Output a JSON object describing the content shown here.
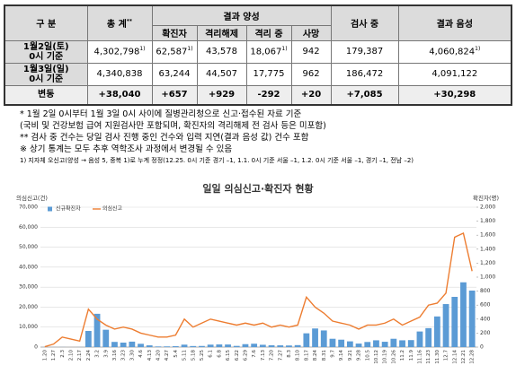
{
  "table": {
    "header_top": [
      "구 분",
      "총 계",
      "결과 양성",
      "검사 중",
      "결과 음성"
    ],
    "total_mark": "**",
    "header_sub": [
      "확진자",
      "격리해제",
      "격리 중",
      "사망"
    ],
    "rows": [
      {
        "label": [
          "1월2일(토)",
          "0시 기준"
        ],
        "cells": [
          {
            "text": "4,302,798",
            "note": "1)"
          },
          {
            "text": "62,587",
            "note": "1)"
          },
          {
            "text": "43,578"
          },
          {
            "text": "18,067",
            "note": "1)"
          },
          {
            "text": "942"
          },
          {
            "text": "179,387"
          },
          {
            "text": "4,060,824",
            "note": "1)"
          }
        ]
      },
      {
        "label": [
          "1월3일(일)",
          "0시 기준"
        ],
        "cells": [
          {
            "text": "4,340,838"
          },
          {
            "text": "63,244"
          },
          {
            "text": "44,507"
          },
          {
            "text": "17,775"
          },
          {
            "text": "962"
          },
          {
            "text": "186,472"
          },
          {
            "text": "4,091,122"
          }
        ]
      },
      {
        "label": [
          "변동"
        ],
        "cells": [
          {
            "text": "+38,040"
          },
          {
            "text": "+657"
          },
          {
            "text": "+929"
          },
          {
            "text": "-292"
          },
          {
            "text": "+20"
          },
          {
            "text": "+7,085"
          },
          {
            "text": "+30,298"
          }
        ]
      }
    ]
  },
  "notes": [
    "* 1월 2일 0시부터 1월 3일 0시 사이에 질병관리청으로 신고·접수된 자료 기준",
    "(국비 및 건강보험 급여 지원검사만 포함되며, 확진자의 격리해제 전 검사 등은 미포함)",
    "** 검사 중 건수는 당일 검사 진행 중인 건수와 입력 지연(결과 음성 값) 건수 포함",
    "※ 상기 통계는 모두 추후 역학조사 과정에서 변경될 수 있음",
    "1) 지자체 오신고(양성 → 음성 5, 중복 1)로 누계 정정(12.25. 0시 기준 경기 –1, 1.1. 0시 기준 서울 –1, 1.2. 0시 기준 서울 –1, 경기 –1, 전남 –2)"
  ],
  "chart_data": {
    "type": "bar_line",
    "title": "일일 의심신고·확진자 현황",
    "ylabel": "의심신고(건)",
    "y2label": "확진자(명)",
    "categories": [
      "1.20",
      "1.27",
      "2.3",
      "2.10",
      "2.17",
      "2.24",
      "3.2",
      "3.9",
      "3.16",
      "3.23",
      "3.30",
      "4.6",
      "4.13",
      "4.20",
      "4.27",
      "5.4",
      "5.11",
      "5.18",
      "5.25",
      "6.1",
      "6.8",
      "6.15",
      "6.22",
      "6.29",
      "7.6",
      "7.13",
      "7.20",
      "7.27",
      "8.3",
      "8.10",
      "8.17",
      "8.24",
      "8.31",
      "9.7",
      "9.14",
      "9.21",
      "9.28",
      "10.5",
      "10.12",
      "10.19",
      "10.26",
      "11.2",
      "11.9",
      "11.16",
      "11.23",
      "11.30",
      "12.7",
      "12.14",
      "12.21",
      "12.28"
    ],
    "series": [
      {
        "name": "신규확진자",
        "color": "#5b9bd5",
        "kind": "bar",
        "axis": "y2",
        "values": [
          1,
          1,
          1,
          0,
          1,
          231,
          476,
          248,
          74,
          64,
          78,
          47,
          25,
          9,
          10,
          13,
          35,
          15,
          16,
          35,
          38,
          37,
          17,
          42,
          48,
          33,
          26,
          25,
          23,
          28,
          197,
          266,
          238,
          119,
          106,
          82,
          50,
          73,
          97,
          76,
          119,
          97,
          100,
          223,
          271,
          438,
          615,
          718,
          926,
          808
        ]
      },
      {
        "name": "의심신고",
        "color": "#ed7d31",
        "kind": "line",
        "values": [
          200,
          1500,
          5000,
          4000,
          3000,
          19000,
          14000,
          11000,
          9000,
          10000,
          9000,
          7000,
          6000,
          5000,
          5000,
          6000,
          14000,
          10000,
          12000,
          14000,
          13000,
          12000,
          11000,
          12000,
          11000,
          12000,
          10000,
          11000,
          10000,
          11000,
          25000,
          20000,
          17000,
          13000,
          12000,
          11000,
          9000,
          11000,
          11000,
          12000,
          14000,
          11000,
          13000,
          15000,
          21000,
          22000,
          27000,
          55000,
          57000,
          38000
        ]
      }
    ],
    "ylim": [
      0,
      70000
    ],
    "yticks": [
      0,
      {
        "value": 10000,
        "label": "10,000"
      },
      {
        "value": 20000,
        "label": "20,000"
      },
      {
        "value": 30000,
        "label": "30,000"
      },
      {
        "value": 40000,
        "label": "40,000"
      },
      {
        "value": 50000,
        "label": "50,000"
      },
      {
        "value": 60000,
        "label": "60,000"
      },
      {
        "value": 70000,
        "label": "70,000"
      }
    ],
    "y2lim": [
      0,
      2000
    ],
    "y2ticks": [
      0,
      200,
      400,
      600,
      800,
      {
        "value": 1000,
        "label": "1,000"
      },
      {
        "value": 1200,
        "label": "1,200"
      },
      {
        "value": 1400,
        "label": "1,400"
      },
      {
        "value": 1600,
        "label": "1,600"
      },
      {
        "value": 1800,
        "label": "1,800"
      },
      {
        "value": 2000,
        "label": "2,000"
      }
    ],
    "grid": true
  }
}
